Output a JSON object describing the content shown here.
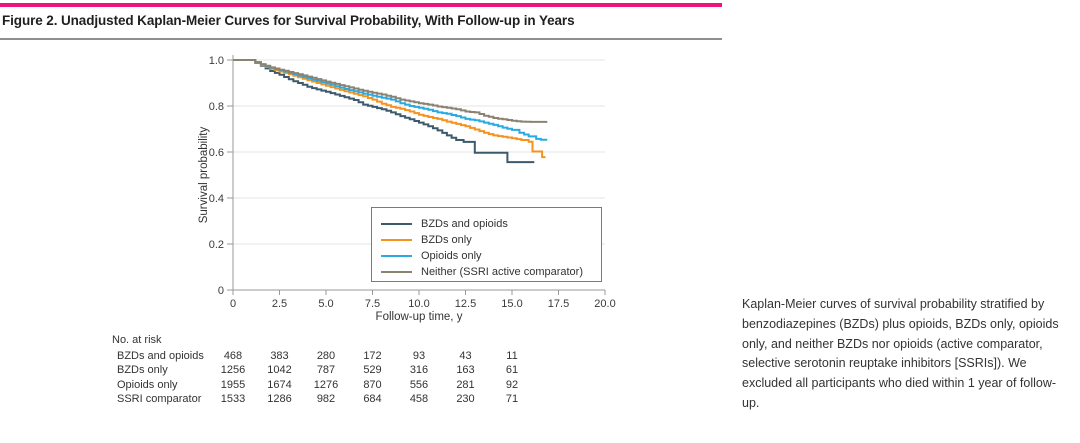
{
  "figure": {
    "title": "Figure 2. Unadjusted Kaplan-Meier Curves for Survival Probability, With Follow-up in Years"
  },
  "caption": {
    "text": "Kaplan-Meier curves of survival probability stratified by benzodiazepines (BZDs) plus opioids, BZDs only, opioids only, and neither BZDs nor opioids (active comparator, selective serotonin reuptake inhibitors [SSRIs]). We excluded all participants who died within 1 year of follow-up."
  },
  "chart_data": {
    "type": "line",
    "subtype": "kaplan-meier-step",
    "xlabel": "Follow-up time, y",
    "ylabel": "Survival probability",
    "xlim": [
      0,
      20
    ],
    "ylim": [
      0,
      1.0
    ],
    "x_ticks": [
      0,
      2.5,
      5.0,
      7.5,
      10.0,
      12.5,
      15.0,
      17.5,
      20.0
    ],
    "x_tick_labels": [
      "0",
      "2.5",
      "5.0",
      "7.5",
      "10.0",
      "12.5",
      "15.0",
      "17.5",
      "20.0"
    ],
    "y_ticks": [
      0,
      0.2,
      0.4,
      0.6,
      0.8,
      1.0
    ],
    "y_tick_labels": [
      "0",
      "0.2",
      "0.4",
      "0.6",
      "0.8",
      "1.0"
    ],
    "grid": "horizontal",
    "legend_position": "inside-bottom-center",
    "series": [
      {
        "name": "BZDs and opioids",
        "color": "#3d5a6d",
        "points": [
          [
            0,
            1.0
          ],
          [
            0.9,
            1.0
          ],
          [
            1.5,
            0.975
          ],
          [
            2,
            0.952
          ],
          [
            2.5,
            0.936
          ],
          [
            3,
            0.916
          ],
          [
            3.5,
            0.9
          ],
          [
            4,
            0.884
          ],
          [
            4.5,
            0.872
          ],
          [
            5,
            0.862
          ],
          [
            5.5,
            0.85
          ],
          [
            6,
            0.838
          ],
          [
            6.5,
            0.826
          ],
          [
            7,
            0.806
          ],
          [
            7.5,
            0.796
          ],
          [
            8,
            0.786
          ],
          [
            8.5,
            0.772
          ],
          [
            9,
            0.756
          ],
          [
            9.5,
            0.742
          ],
          [
            10,
            0.728
          ],
          [
            10.5,
            0.712
          ],
          [
            11,
            0.694
          ],
          [
            11.5,
            0.672
          ],
          [
            12,
            0.652
          ],
          [
            12.4,
            0.644
          ],
          [
            12.95,
            0.644
          ],
          [
            13,
            0.597
          ],
          [
            14.7,
            0.597
          ],
          [
            14.75,
            0.556
          ],
          [
            16.2,
            0.556
          ]
        ]
      },
      {
        "name": "BZDs only",
        "color": "#f6921e",
        "points": [
          [
            0,
            1.0
          ],
          [
            0.9,
            1.0
          ],
          [
            1.5,
            0.978
          ],
          [
            2,
            0.962
          ],
          [
            2.5,
            0.95
          ],
          [
            3,
            0.938
          ],
          [
            3.5,
            0.925
          ],
          [
            4,
            0.912
          ],
          [
            4.5,
            0.9
          ],
          [
            5,
            0.888
          ],
          [
            5.5,
            0.876
          ],
          [
            6,
            0.864
          ],
          [
            6.5,
            0.853
          ],
          [
            7,
            0.842
          ],
          [
            7.5,
            0.828
          ],
          [
            8,
            0.81
          ],
          [
            8.5,
            0.796
          ],
          [
            9,
            0.788
          ],
          [
            9.5,
            0.776
          ],
          [
            10,
            0.762
          ],
          [
            10.5,
            0.752
          ],
          [
            11,
            0.744
          ],
          [
            11.5,
            0.732
          ],
          [
            12,
            0.722
          ],
          [
            12.5,
            0.712
          ],
          [
            13,
            0.698
          ],
          [
            13.5,
            0.684
          ],
          [
            14,
            0.672
          ],
          [
            14.5,
            0.666
          ],
          [
            15,
            0.66
          ],
          [
            15.5,
            0.652
          ],
          [
            15.9,
            0.645
          ],
          [
            16.05,
            0.645
          ],
          [
            16.1,
            0.602
          ],
          [
            16.58,
            0.602
          ],
          [
            16.62,
            0.578
          ],
          [
            16.8,
            0.578
          ]
        ]
      },
      {
        "name": "Opioids only",
        "color": "#29abe2",
        "points": [
          [
            0,
            1.0
          ],
          [
            0.9,
            1.0
          ],
          [
            1.5,
            0.98
          ],
          [
            2,
            0.966
          ],
          [
            2.5,
            0.955
          ],
          [
            3,
            0.944
          ],
          [
            3.5,
            0.932
          ],
          [
            4,
            0.92
          ],
          [
            4.5,
            0.909
          ],
          [
            5,
            0.898
          ],
          [
            5.5,
            0.886
          ],
          [
            6,
            0.874
          ],
          [
            6.5,
            0.864
          ],
          [
            7,
            0.854
          ],
          [
            7.5,
            0.845
          ],
          [
            8,
            0.836
          ],
          [
            8.5,
            0.828
          ],
          [
            9,
            0.812
          ],
          [
            9.5,
            0.8
          ],
          [
            10,
            0.792
          ],
          [
            10.5,
            0.784
          ],
          [
            11,
            0.772
          ],
          [
            11.5,
            0.766
          ],
          [
            12,
            0.756
          ],
          [
            12.5,
            0.744
          ],
          [
            13,
            0.738
          ],
          [
            13.5,
            0.728
          ],
          [
            14,
            0.718
          ],
          [
            14.5,
            0.706
          ],
          [
            15,
            0.696
          ],
          [
            15.4,
            0.684
          ],
          [
            15.9,
            0.668
          ],
          [
            16.3,
            0.657
          ],
          [
            16.55,
            0.653
          ],
          [
            16.9,
            0.653
          ]
        ]
      },
      {
        "name": "Neither (SSRI active comparator)",
        "color": "#8c8272",
        "points": [
          [
            0,
            1.0
          ],
          [
            0.9,
            1.0
          ],
          [
            1.5,
            0.982
          ],
          [
            2,
            0.968
          ],
          [
            2.5,
            0.958
          ],
          [
            3,
            0.948
          ],
          [
            3.5,
            0.938
          ],
          [
            4,
            0.928
          ],
          [
            4.5,
            0.917
          ],
          [
            5,
            0.906
          ],
          [
            5.5,
            0.896
          ],
          [
            6,
            0.886
          ],
          [
            6.5,
            0.876
          ],
          [
            7,
            0.866
          ],
          [
            7.5,
            0.858
          ],
          [
            8,
            0.85
          ],
          [
            8.5,
            0.84
          ],
          [
            9,
            0.828
          ],
          [
            9.5,
            0.82
          ],
          [
            10,
            0.812
          ],
          [
            10.5,
            0.806
          ],
          [
            11,
            0.798
          ],
          [
            11.5,
            0.792
          ],
          [
            12,
            0.786
          ],
          [
            12.5,
            0.776
          ],
          [
            13,
            0.772
          ],
          [
            13.5,
            0.758
          ],
          [
            14,
            0.748
          ],
          [
            14.5,
            0.742
          ],
          [
            15,
            0.736
          ],
          [
            15.5,
            0.732
          ],
          [
            16,
            0.731
          ],
          [
            16.9,
            0.731
          ]
        ]
      }
    ]
  },
  "at_risk": {
    "header": "No. at risk",
    "time_points": [
      0,
      2.5,
      5.0,
      7.5,
      10.0,
      12.5,
      15.0
    ],
    "rows": [
      {
        "label": "BZDs and opioids",
        "values": [
          468,
          383,
          280,
          172,
          93,
          43,
          11
        ]
      },
      {
        "label": "BZDs only",
        "values": [
          1256,
          1042,
          787,
          529,
          316,
          163,
          61
        ]
      },
      {
        "label": "Opioids only",
        "values": [
          1955,
          1674,
          1276,
          870,
          556,
          281,
          92
        ]
      },
      {
        "label": "SSRI comparator",
        "values": [
          1533,
          1286,
          982,
          684,
          458,
          230,
          71
        ]
      }
    ]
  },
  "colors": {
    "accent_bar": "#ee1380",
    "header_rule": "#8f8f8f",
    "grid": "#eaeaea",
    "axis": "#9a9a9a",
    "tick_text": "#3a3a3a",
    "text": "#333333"
  }
}
